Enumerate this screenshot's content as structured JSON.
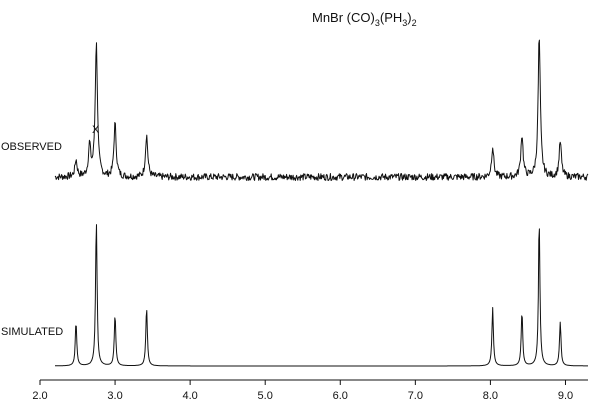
{
  "chart_data": [
    {
      "type": "line",
      "title": "MnBr(CO)3(PH3)2",
      "title_parts": [
        "MnBr (CO)",
        "3",
        "(PH",
        "3",
        ")",
        "2"
      ],
      "series_label": "OBSERVED",
      "annotation": "X",
      "x_axis": {
        "ticks": [
          "2.0",
          "3.0",
          "4.0",
          "5.0",
          "6.0",
          "7.0",
          "8.0",
          "9.0"
        ],
        "xlim": [
          2.0,
          9.3
        ],
        "grid": false
      },
      "peaks": [
        {
          "x": 2.48,
          "height": 0.12
        },
        {
          "x": 2.66,
          "height": 0.22
        },
        {
          "x": 2.75,
          "height": 0.95
        },
        {
          "x": 3.0,
          "height": 0.38
        },
        {
          "x": 3.42,
          "height": 0.3
        },
        {
          "x": 8.03,
          "height": 0.22
        },
        {
          "x": 8.42,
          "height": 0.3
        },
        {
          "x": 8.65,
          "height": 1.0
        },
        {
          "x": 8.93,
          "height": 0.25
        }
      ],
      "x_range": [
        2.2,
        9.3
      ],
      "noisy": true
    },
    {
      "type": "line",
      "series_label": "SIMULATED",
      "x_axis": {
        "ticks": [
          "2.0",
          "3.0",
          "4.0",
          "5.0",
          "6.0",
          "7.0",
          "8.0",
          "9.0"
        ],
        "xlim": [
          2.0,
          9.3
        ],
        "grid": false
      },
      "peaks": [
        {
          "x": 2.48,
          "height": 0.3
        },
        {
          "x": 2.75,
          "height": 1.0
        },
        {
          "x": 3.0,
          "height": 0.35
        },
        {
          "x": 3.42,
          "height": 0.4
        },
        {
          "x": 8.03,
          "height": 0.4
        },
        {
          "x": 8.42,
          "height": 0.37
        },
        {
          "x": 8.65,
          "height": 1.0
        },
        {
          "x": 8.93,
          "height": 0.3
        }
      ],
      "x_range": [
        2.2,
        9.3
      ],
      "noisy": false
    }
  ]
}
